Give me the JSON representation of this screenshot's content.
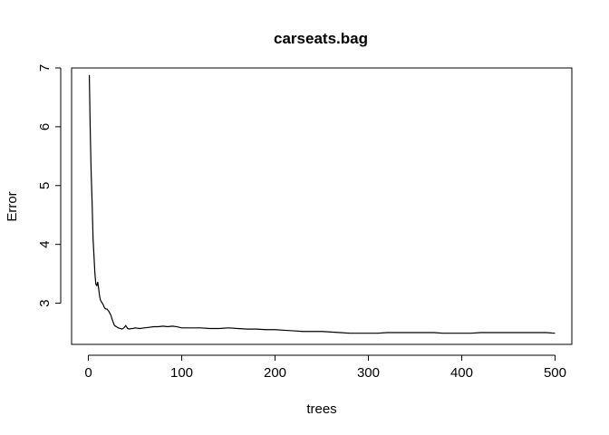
{
  "chart_data": {
    "type": "line",
    "title": "carseats.bag",
    "xlabel": "trees",
    "ylabel": "Error",
    "xlim": [
      -18,
      518
    ],
    "ylim": [
      2.3,
      7.0
    ],
    "xticks": [
      0,
      100,
      200,
      300,
      400,
      500
    ],
    "yticks": [
      3,
      4,
      5,
      6,
      7
    ],
    "grid": false,
    "legend": "none",
    "line_color": "#000000",
    "series": [
      {
        "x": [
          1,
          2,
          3,
          4,
          5,
          6,
          7,
          8,
          9,
          10,
          11,
          12,
          13,
          14,
          15,
          16,
          17,
          18,
          19,
          20,
          22,
          24,
          26,
          28,
          30,
          32,
          34,
          36,
          38,
          40,
          42,
          44,
          46,
          48,
          50,
          55,
          60,
          65,
          70,
          75,
          80,
          85,
          90,
          95,
          100,
          110,
          120,
          130,
          140,
          150,
          160,
          170,
          180,
          190,
          200,
          210,
          220,
          230,
          240,
          250,
          260,
          270,
          280,
          290,
          300,
          310,
          320,
          330,
          340,
          350,
          360,
          370,
          380,
          390,
          400,
          410,
          420,
          430,
          440,
          450,
          460,
          470,
          480,
          490,
          500
        ],
        "values": [
          6.88,
          5.9,
          5.2,
          4.7,
          4.1,
          3.8,
          3.5,
          3.32,
          3.3,
          3.36,
          3.25,
          3.12,
          3.05,
          3.02,
          3.0,
          2.97,
          2.93,
          2.91,
          2.9,
          2.9,
          2.86,
          2.8,
          2.7,
          2.62,
          2.6,
          2.58,
          2.57,
          2.56,
          2.58,
          2.62,
          2.57,
          2.56,
          2.57,
          2.57,
          2.58,
          2.57,
          2.58,
          2.59,
          2.6,
          2.6,
          2.61,
          2.6,
          2.61,
          2.6,
          2.58,
          2.58,
          2.58,
          2.57,
          2.57,
          2.58,
          2.57,
          2.56,
          2.56,
          2.55,
          2.55,
          2.54,
          2.53,
          2.52,
          2.52,
          2.52,
          2.51,
          2.5,
          2.49,
          2.49,
          2.49,
          2.49,
          2.5,
          2.5,
          2.5,
          2.5,
          2.5,
          2.5,
          2.49,
          2.49,
          2.49,
          2.49,
          2.5,
          2.5,
          2.5,
          2.5,
          2.5,
          2.5,
          2.5,
          2.5,
          2.49
        ]
      }
    ]
  }
}
